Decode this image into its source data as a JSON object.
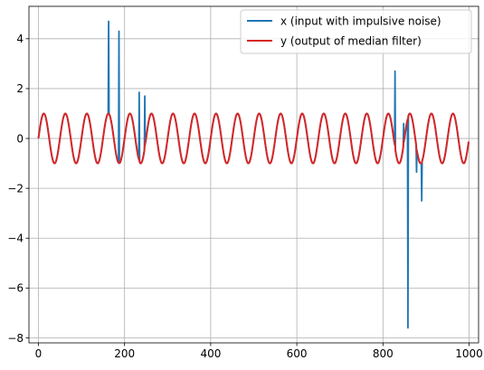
{
  "chart_data": {
    "type": "line",
    "xlim": [
      -22,
      1022
    ],
    "ylim": [
      -8.2,
      5.3
    ],
    "xticks": [
      0,
      200,
      400,
      600,
      800,
      1000
    ],
    "yticks": [
      -8,
      -6,
      -4,
      -2,
      0,
      2,
      4
    ],
    "xtick_labels": [
      "0",
      "200",
      "400",
      "600",
      "800",
      "1000"
    ],
    "ytick_labels": [
      "−8",
      "−6",
      "−4",
      "−2",
      "0",
      "2",
      "4"
    ],
    "grid": true,
    "legend_position": "top-right",
    "sine": {
      "period": 50,
      "amplitude": 1,
      "n": 1000
    },
    "series": [
      {
        "name": "x (input with impulsive noise)",
        "color": "#1f77b4",
        "impulses": [
          [
            163,
            4.7
          ],
          [
            187,
            4.3
          ],
          [
            234,
            1.85
          ],
          [
            247,
            1.7
          ],
          [
            828,
            2.7
          ],
          [
            848,
            0.6
          ],
          [
            858,
            -7.6
          ],
          [
            878,
            -1.35
          ],
          [
            890,
            -2.5
          ]
        ]
      },
      {
        "name": "y (output of median filter)",
        "color": "#d62728"
      }
    ]
  }
}
